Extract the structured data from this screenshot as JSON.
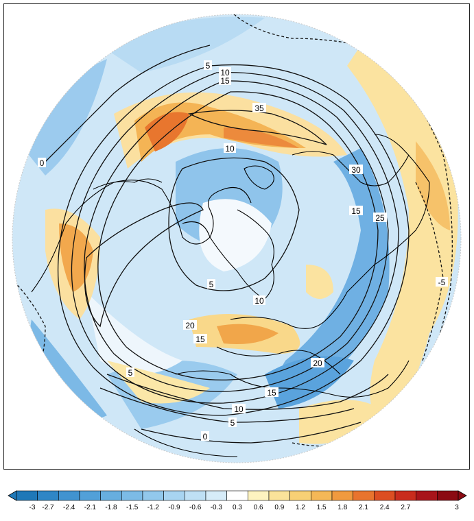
{
  "map": {
    "projection": "north-polar-stereographic",
    "contour_labels": [
      {
        "id": "l5-top",
        "text": "5"
      },
      {
        "id": "l10-top",
        "text": "10"
      },
      {
        "id": "l15-top",
        "text": "15"
      },
      {
        "id": "l35",
        "text": "35"
      },
      {
        "id": "l10-mid",
        "text": "10"
      },
      {
        "id": "l30",
        "text": "30"
      },
      {
        "id": "l15-right",
        "text": "15"
      },
      {
        "id": "l25",
        "text": "25"
      },
      {
        "id": "l0-left",
        "text": "0"
      },
      {
        "id": "l5-pole",
        "text": "5"
      },
      {
        "id": "l10-pole",
        "text": "10"
      },
      {
        "id": "l20-left",
        "text": "20"
      },
      {
        "id": "l15-left",
        "text": "15"
      },
      {
        "id": "l5-left",
        "text": "5"
      },
      {
        "id": "l20-bottom",
        "text": "20"
      },
      {
        "id": "l15-bottom",
        "text": "15"
      },
      {
        "id": "l10-bottom",
        "text": "10"
      },
      {
        "id": "l5-bottom",
        "text": "5"
      },
      {
        "id": "l0-bottom",
        "text": "0"
      },
      {
        "id": "lneg5",
        "text": "-5"
      }
    ]
  },
  "colorbar": {
    "tick_labels": [
      "-3",
      "-2.7",
      "-2.4",
      "-2.1",
      "-1.8",
      "-1.5",
      "-1.2",
      "-0.9",
      "-0.6",
      "-0.3",
      "0.3",
      "0.6",
      "0.9",
      "1.2",
      "1.5",
      "1.8",
      "2.1",
      "2.4",
      "2.7",
      "3"
    ],
    "colors": [
      "#1f78b8",
      "#2f86c6",
      "#4193d0",
      "#52a0d8",
      "#67aedf",
      "#7cbbe6",
      "#92c8ec",
      "#a8d4f1",
      "#bfe0f5",
      "#d6ecf9",
      "#ffffff",
      "#fdf3c0",
      "#fbe39a",
      "#f8d075",
      "#f5b857",
      "#f09a3f",
      "#e8742e",
      "#dc4e22",
      "#c92c1d",
      "#a8141a",
      "#8b0a12"
    ],
    "under_color": "#1f78b8",
    "over_color": "#8b0a12"
  },
  "colors": {
    "neg_strong": "#4a9ad6",
    "neg_mid": "#84bde8",
    "neg_light": "#c6e3f6",
    "pos_light": "#fbe8a6",
    "pos_mid": "#f5bf5c",
    "pos_strong": "#e8762e",
    "pos_max": "#d84a1e"
  }
}
